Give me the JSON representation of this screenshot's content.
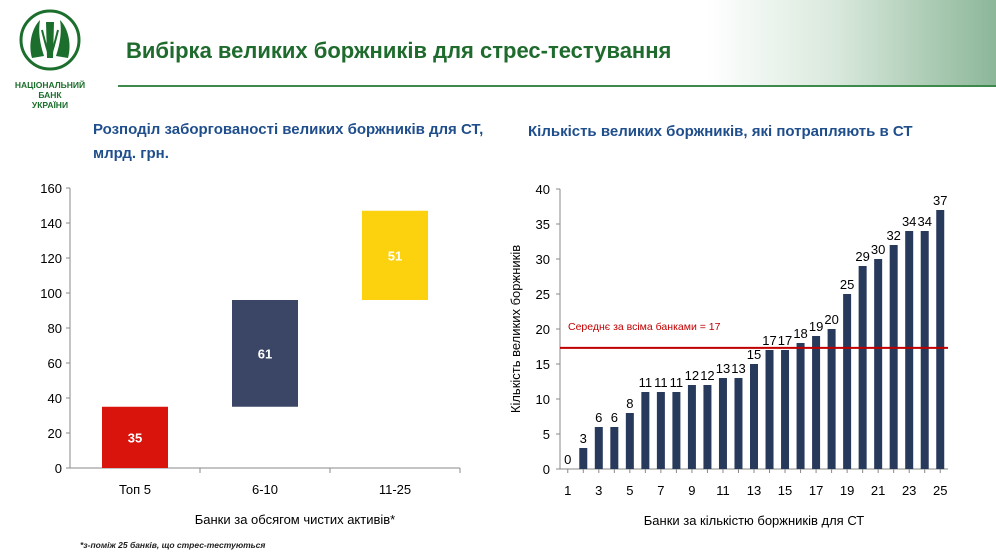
{
  "header": {
    "title": "Вибірка великих боржників для стрес-тестування",
    "logo_text": [
      "НАЦІОНАЛЬНИЙ",
      "БАНК",
      "УКРАЇНИ"
    ]
  },
  "colors": {
    "brand_green": "#1f6b2e",
    "subtitle_blue": "#1f4e8c",
    "bar_navy": "#283a5c",
    "red": "#d9140c",
    "navy_block": "#3b4566",
    "yellow": "#fcd20f",
    "mean_line": "#c00000"
  },
  "footnote": "*з-поміж 25 банків, що стрес-тестуються",
  "chart_data": [
    {
      "type": "bar",
      "subtype": "waterfall",
      "title": "Розподіл заборгованості великих боржників для СТ, млрд. грн.",
      "title_lines": [
        "Розподіл заборгованості великих боржників для СТ,",
        "млрд. грн."
      ],
      "xlabel": "Банки за обсягом чистих активів*",
      "ylabel": "",
      "categories": [
        "Топ 5",
        "6-10",
        "11-25"
      ],
      "values": [
        35,
        61,
        51
      ],
      "bases": [
        0,
        35,
        96
      ],
      "colors": [
        "#d9140c",
        "#3b4566",
        "#fcd20f"
      ],
      "ylim": [
        0,
        160
      ],
      "yticks": [
        0,
        20,
        40,
        60,
        80,
        100,
        120,
        140,
        160
      ],
      "grid": false,
      "legend": "none"
    },
    {
      "type": "bar",
      "title": "Кількість великих боржників, які потрапляють в СТ",
      "xlabel": "Банки за кількістю боржників для СТ",
      "ylabel": "Кількість великих боржників",
      "x": [
        1,
        2,
        3,
        4,
        5,
        6,
        7,
        8,
        9,
        10,
        11,
        12,
        13,
        14,
        15,
        16,
        17,
        18,
        19,
        20,
        21,
        22,
        23,
        24,
        25
      ],
      "xtick_labels": [
        "1",
        "3",
        "5",
        "7",
        "9",
        "11",
        "13",
        "15",
        "17",
        "19",
        "21",
        "23",
        "25"
      ],
      "values": [
        0,
        3,
        6,
        6,
        8,
        11,
        11,
        11,
        12,
        12,
        13,
        13,
        15,
        17,
        17,
        18,
        19,
        20,
        25,
        29,
        30,
        32,
        34,
        34,
        37
      ],
      "ylim": [
        0,
        40
      ],
      "yticks": [
        0,
        5,
        10,
        15,
        20,
        25,
        30,
        35,
        40
      ],
      "mean_line": {
        "value": 17.3,
        "label": "Середнє за всіма банками = 17"
      },
      "grid": false,
      "legend": "none"
    }
  ]
}
